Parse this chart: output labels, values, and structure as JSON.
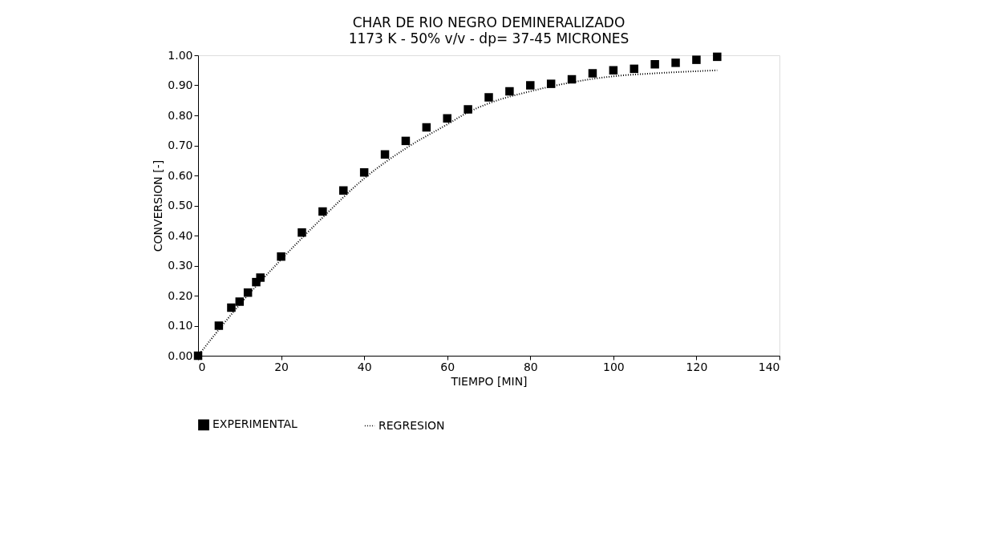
{
  "chart_data": {
    "type": "scatter",
    "title": "CHAR DE RIO NEGRO DEMINERALIZADO",
    "subtitle": "1173 K - 50% v/v - dp= 37-45 MICRONES",
    "xlabel": "TIEMPO [MIN]",
    "ylabel": "CONVERSION [-]",
    "xlim": [
      0,
      140
    ],
    "xticks": [
      0,
      20,
      40,
      60,
      80,
      100,
      120,
      140
    ],
    "ylim": [
      0,
      1
    ],
    "yticks": [
      {
        "value": 0,
        "label": "0.00"
      },
      {
        "value": 0.1,
        "label": "0.10"
      },
      {
        "value": 0.2,
        "label": "0.20"
      },
      {
        "value": 0.3,
        "label": "0.30"
      },
      {
        "value": 0.4,
        "label": "0.40"
      },
      {
        "value": 0.5,
        "label": "0.50"
      },
      {
        "value": 0.6,
        "label": "0.60"
      },
      {
        "value": 0.7,
        "label": "0.70"
      },
      {
        "value": 0.8,
        "label": "0.80"
      },
      {
        "value": 0.9,
        "label": "0.90"
      },
      {
        "value": 1,
        "label": "1.00"
      }
    ],
    "grid": false,
    "legend": "bottom",
    "series": [
      {
        "name": "EXPERIMENTAL",
        "marker": "square",
        "color": "#000000",
        "x": [
          0,
          5,
          8,
          10,
          12,
          14,
          15,
          20,
          25,
          30,
          35,
          40,
          45,
          50,
          55,
          60,
          65,
          70,
          75,
          80,
          85,
          90,
          95,
          100,
          105,
          110,
          115,
          120,
          125
        ],
        "values": [
          0.0,
          0.1,
          0.16,
          0.18,
          0.21,
          0.245,
          0.26,
          0.33,
          0.41,
          0.48,
          0.55,
          0.61,
          0.67,
          0.715,
          0.76,
          0.79,
          0.82,
          0.86,
          0.88,
          0.9,
          0.905,
          0.92,
          0.94,
          0.95,
          0.955,
          0.97,
          0.975,
          0.985,
          0.995
        ]
      },
      {
        "name": "REGRESION",
        "type": "line",
        "marker": "none",
        "line_style": "dotted",
        "color": "#000000",
        "x": [
          0,
          10,
          20,
          30,
          40,
          50,
          60,
          65,
          70,
          80,
          90,
          100,
          110,
          120,
          125
        ],
        "values": [
          0.0,
          0.17,
          0.32,
          0.46,
          0.59,
          0.69,
          0.77,
          0.81,
          0.84,
          0.88,
          0.91,
          0.93,
          0.94,
          0.947,
          0.95
        ]
      }
    ]
  }
}
